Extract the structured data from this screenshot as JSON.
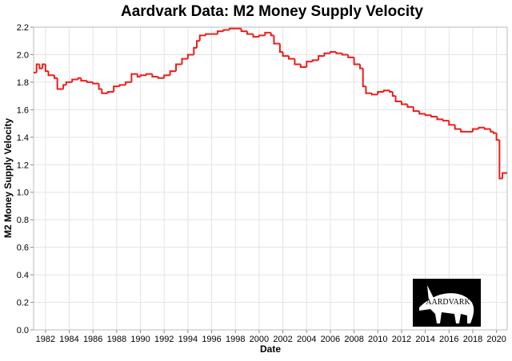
{
  "chart_data": {
    "type": "step",
    "title": "Aardvark Data: M2 Money Supply Velocity",
    "x_label": "Date",
    "y_label": "M2 Money Supply Velocity",
    "logo_text": "AARDVARK",
    "xlim": [
      1981,
      2020.9
    ],
    "xticks": [
      1982,
      1984,
      1986,
      1988,
      1990,
      1992,
      1994,
      1996,
      1998,
      2000,
      2002,
      2004,
      2006,
      2008,
      2010,
      2012,
      2014,
      2016,
      2018,
      2020
    ],
    "ylim": [
      0,
      2.2
    ],
    "yticks": [
      {
        "value": 0,
        "label": "0.0"
      },
      0.2,
      0.4,
      0.6,
      0.8,
      {
        "value": 1,
        "label": "1.0"
      },
      1.2,
      1.4,
      1.6,
      1.8,
      {
        "value": 2,
        "label": "2.0"
      },
      2.2
    ],
    "grid": true,
    "series": [
      {
        "name": "M2 Money Supply Velocity",
        "color": "#ee1c1c",
        "x": [
          1981.0,
          1981.25,
          1981.5,
          1981.75,
          1982.0,
          1982.25,
          1982.75,
          1983.0,
          1983.5,
          1983.75,
          1984.25,
          1984.75,
          1985.0,
          1985.5,
          1986.0,
          1986.5,
          1986.75,
          1987.25,
          1987.75,
          1988.25,
          1988.75,
          1989.25,
          1989.75,
          1990.0,
          1990.5,
          1991.0,
          1991.5,
          1992.0,
          1992.5,
          1993.0,
          1993.5,
          1994.0,
          1994.5,
          1994.75,
          1995.0,
          1995.5,
          1996.0,
          1996.5,
          1997.0,
          1997.5,
          1998.0,
          1998.5,
          1999.0,
          1999.5,
          2000.0,
          2000.5,
          2001.0,
          2001.25,
          2001.75,
          2002.0,
          2002.5,
          2003.0,
          2003.5,
          2004.0,
          2004.5,
          2005.0,
          2005.5,
          2006.0,
          2006.5,
          2007.0,
          2007.5,
          2008.0,
          2008.5,
          2008.75,
          2009.0,
          2009.5,
          2010.0,
          2010.5,
          2011.0,
          2011.25,
          2011.5,
          2012.0,
          2012.5,
          2013.0,
          2013.5,
          2014.0,
          2014.5,
          2015.0,
          2015.5,
          2016.0,
          2016.5,
          2017.0,
          2017.5,
          2018.0,
          2018.5,
          2019.0,
          2019.5,
          2019.75,
          2020.0,
          2020.25,
          2020.5
        ],
        "values": [
          1.87,
          1.93,
          1.9,
          1.93,
          1.88,
          1.85,
          1.83,
          1.75,
          1.78,
          1.8,
          1.82,
          1.83,
          1.81,
          1.8,
          1.79,
          1.75,
          1.72,
          1.73,
          1.77,
          1.78,
          1.8,
          1.86,
          1.84,
          1.85,
          1.86,
          1.84,
          1.83,
          1.85,
          1.88,
          1.93,
          1.97,
          2.0,
          2.05,
          2.1,
          2.14,
          2.15,
          2.15,
          2.17,
          2.18,
          2.19,
          2.19,
          2.17,
          2.15,
          2.13,
          2.14,
          2.16,
          2.14,
          2.08,
          2.02,
          1.99,
          1.97,
          1.93,
          1.91,
          1.95,
          1.96,
          1.99,
          2.01,
          2.02,
          2.01,
          2.0,
          1.98,
          1.93,
          1.9,
          1.77,
          1.72,
          1.71,
          1.73,
          1.74,
          1.73,
          1.7,
          1.66,
          1.64,
          1.62,
          1.59,
          1.57,
          1.56,
          1.55,
          1.53,
          1.52,
          1.49,
          1.46,
          1.44,
          1.44,
          1.46,
          1.47,
          1.46,
          1.44,
          1.43,
          1.38,
          1.1,
          1.14
        ]
      }
    ]
  }
}
